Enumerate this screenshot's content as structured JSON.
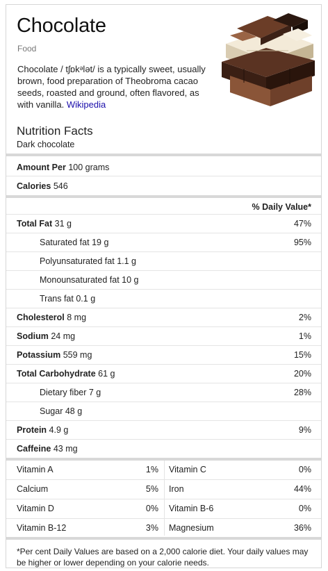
{
  "header": {
    "title": "Chocolate",
    "subtitle": "Food",
    "description": "Chocolate / tʃɒkᵊlət/ is a typically sweet, usually brown, food preparation of Theobroma cacao seeds, roasted and ground, often flavored, as with vanilla.",
    "source_link": "Wikipedia",
    "colors": {
      "link": "#1a0dab"
    }
  },
  "nutrition": {
    "title": "Nutrition Facts",
    "variant": "Dark chocolate",
    "amount_label": "Amount Per",
    "amount_value": "100 grams",
    "calories_label": "Calories",
    "calories_value": "546",
    "daily_value_header": "% Daily Value*",
    "rows": [
      {
        "label": "Total Fat",
        "value": "31 g",
        "pct": "47%",
        "bold": true,
        "indent": false
      },
      {
        "label": "Saturated fat",
        "value": "19 g",
        "pct": "95%",
        "bold": false,
        "indent": true
      },
      {
        "label": "Polyunsaturated fat",
        "value": "1.1 g",
        "pct": "",
        "bold": false,
        "indent": true
      },
      {
        "label": "Monounsaturated fat",
        "value": "10 g",
        "pct": "",
        "bold": false,
        "indent": true
      },
      {
        "label": "Trans fat",
        "value": "0.1 g",
        "pct": "",
        "bold": false,
        "indent": true
      },
      {
        "label": "Cholesterol",
        "value": "8 mg",
        "pct": "2%",
        "bold": true,
        "indent": false
      },
      {
        "label": "Sodium",
        "value": "24 mg",
        "pct": "1%",
        "bold": true,
        "indent": false
      },
      {
        "label": "Potassium",
        "value": "559 mg",
        "pct": "15%",
        "bold": true,
        "indent": false
      },
      {
        "label": "Total Carbohydrate",
        "value": "61 g",
        "pct": "20%",
        "bold": true,
        "indent": false
      },
      {
        "label": "Dietary fiber",
        "value": "7 g",
        "pct": "28%",
        "bold": false,
        "indent": true
      },
      {
        "label": "Sugar",
        "value": "48 g",
        "pct": "",
        "bold": false,
        "indent": true
      },
      {
        "label": "Protein",
        "value": "4.9 g",
        "pct": "9%",
        "bold": true,
        "indent": false
      },
      {
        "label": "Caffeine",
        "value": "43 mg",
        "pct": "",
        "bold": true,
        "indent": false
      }
    ]
  },
  "vitamins": [
    {
      "n1": "Vitamin A",
      "p1": "1%",
      "n2": "Vitamin C",
      "p2": "0%"
    },
    {
      "n1": "Calcium",
      "p1": "5%",
      "n2": "Iron",
      "p2": "44%"
    },
    {
      "n1": "Vitamin D",
      "p1": "0%",
      "n2": "Vitamin B-6",
      "p2": "0%"
    },
    {
      "n1": "Vitamin B-12",
      "p1": "3%",
      "n2": "Magnesium",
      "p2": "36%"
    }
  ],
  "footnote": "*Per cent Daily Values are based on a 2,000 calorie diet. Your daily values may be higher or lower depending on your calorie needs."
}
